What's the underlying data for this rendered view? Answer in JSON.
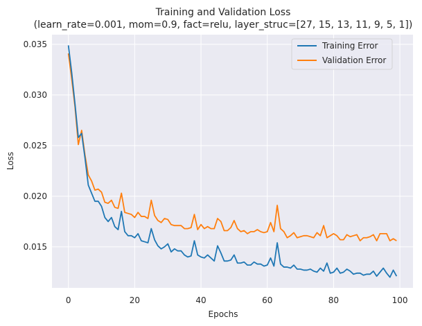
{
  "chart_data": {
    "type": "line",
    "title": "Training and Validation Loss",
    "subtitle": "(learn_rate=0.001, mom=0.9, fact=relu, layer_struc=[27, 15, 13, 11, 9, 5, 1])",
    "xlabel": "Epochs",
    "ylabel": "Loss",
    "xlim": [
      -4.95,
      103.95
    ],
    "ylim": [
      0.01095,
      0.03595
    ],
    "xticks": [
      0,
      20,
      40,
      60,
      80,
      100
    ],
    "xtick_labels": [
      "0",
      "20",
      "40",
      "60",
      "80",
      "100"
    ],
    "yticks": [
      0.015,
      0.02,
      0.025,
      0.03,
      0.035
    ],
    "ytick_labels": [
      "0.015",
      "0.020",
      "0.025",
      "0.030",
      "0.035"
    ],
    "grid": true,
    "legend_position": "top-right",
    "background": "#eaeaf2",
    "series": [
      {
        "name": "Training Error",
        "color": "#1f77b4",
        "values": [
          0.0349,
          0.0322,
          0.0291,
          0.0258,
          0.0262,
          0.0238,
          0.0211,
          0.0203,
          0.0195,
          0.0195,
          0.019,
          0.0179,
          0.0175,
          0.0179,
          0.017,
          0.0167,
          0.0185,
          0.0165,
          0.0161,
          0.0161,
          0.0159,
          0.0163,
          0.0156,
          0.0155,
          0.0154,
          0.0168,
          0.0157,
          0.0151,
          0.0148,
          0.015,
          0.0153,
          0.0145,
          0.0148,
          0.0146,
          0.0146,
          0.0142,
          0.014,
          0.0141,
          0.0156,
          0.0142,
          0.014,
          0.0139,
          0.0142,
          0.0139,
          0.0136,
          0.0151,
          0.0144,
          0.0136,
          0.0136,
          0.0137,
          0.0142,
          0.0134,
          0.0134,
          0.0135,
          0.0132,
          0.0132,
          0.0135,
          0.0133,
          0.0133,
          0.0131,
          0.0132,
          0.0139,
          0.0131,
          0.0154,
          0.0133,
          0.013,
          0.013,
          0.0129,
          0.0132,
          0.0128,
          0.0128,
          0.0127,
          0.0127,
          0.0128,
          0.0126,
          0.0125,
          0.0129,
          0.0126,
          0.0134,
          0.0124,
          0.0125,
          0.0129,
          0.0124,
          0.0125,
          0.0128,
          0.0126,
          0.0123,
          0.0124,
          0.0124,
          0.0122,
          0.0123,
          0.0123,
          0.0126,
          0.0121,
          0.0125,
          0.0129,
          0.0124,
          0.012,
          0.0127,
          0.0121
        ]
      },
      {
        "name": "Validation Error",
        "color": "#ff7f0e",
        "values": [
          0.0341,
          0.0316,
          0.0288,
          0.0251,
          0.0265,
          0.0241,
          0.0221,
          0.0215,
          0.0206,
          0.0207,
          0.0204,
          0.0194,
          0.0193,
          0.0196,
          0.0189,
          0.0188,
          0.0203,
          0.0184,
          0.0183,
          0.0182,
          0.0179,
          0.0184,
          0.018,
          0.018,
          0.0178,
          0.0196,
          0.0181,
          0.0176,
          0.0174,
          0.0178,
          0.0177,
          0.0172,
          0.0171,
          0.0171,
          0.0171,
          0.0168,
          0.0168,
          0.0169,
          0.0182,
          0.0167,
          0.0172,
          0.0168,
          0.017,
          0.0168,
          0.0168,
          0.0178,
          0.0175,
          0.0166,
          0.0166,
          0.0169,
          0.0176,
          0.0168,
          0.0165,
          0.0166,
          0.0163,
          0.0165,
          0.0165,
          0.0167,
          0.0165,
          0.0164,
          0.0165,
          0.0174,
          0.0165,
          0.0191,
          0.0168,
          0.0165,
          0.0159,
          0.0161,
          0.0164,
          0.0159,
          0.016,
          0.0161,
          0.0161,
          0.016,
          0.0159,
          0.0164,
          0.0161,
          0.0171,
          0.0159,
          0.0161,
          0.0163,
          0.0161,
          0.0157,
          0.0157,
          0.0162,
          0.016,
          0.0161,
          0.0162,
          0.0156,
          0.0159,
          0.0159,
          0.016,
          0.0162,
          0.0156,
          0.0163,
          0.0163,
          0.0163,
          0.0156,
          0.0158,
          0.0156
        ]
      }
    ]
  }
}
